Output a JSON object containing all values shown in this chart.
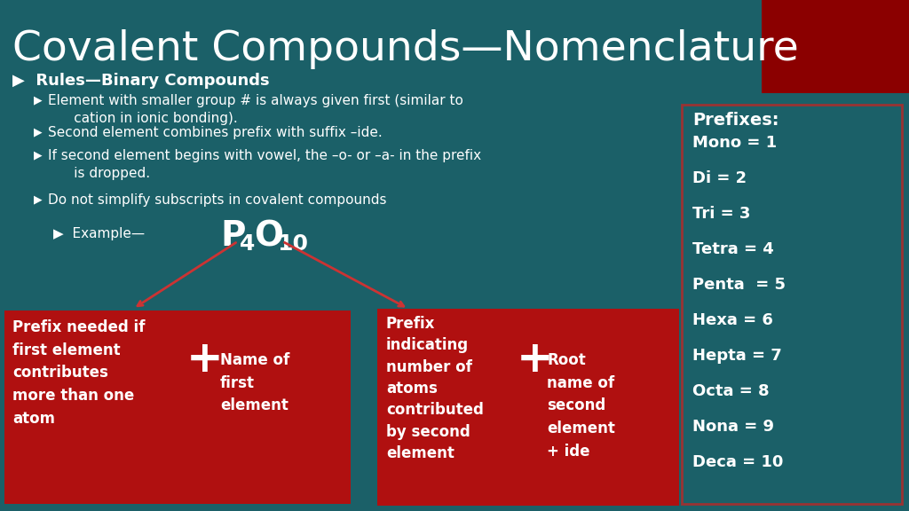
{
  "title": "Covalent Compounds—Nomenclature",
  "bg_color": "#1b6068",
  "title_color": "#ffffff",
  "title_fontsize": 34,
  "red_dark": "#8b0000",
  "red_box": "#b01010",
  "white_color": "#ffffff",
  "bullet1_header": "Rules—Binary Compounds",
  "bullets": [
    "Element with smaller group # is always given first (similar to\n      cation in ionic bonding).",
    "Second element combines prefix with suffix –ide.",
    "If second element begins with vowel, the –o- or –a- in the prefix\n      is dropped.",
    "Do not simplify subscripts in covalent compounds"
  ],
  "example_label": "Example—",
  "prefixes_title": "Prefixes:",
  "prefixes": [
    "Mono = 1",
    "Di = 2",
    "Tri = 3",
    "Tetra = 4",
    "Penta  = 5",
    "Hexa = 6",
    "Hepta = 7",
    "Octa = 8",
    "Nona = 9",
    "Deca = 10"
  ],
  "box1_text": "Prefix needed if\nfirst element\ncontributes\nmore than one\natom",
  "box1_plus_text": "Name of\nfirst\nelement",
  "box2_text": "Prefix\nindicating\nnumber of\natoms\ncontributed\nby second\nelement",
  "box2_plus_text": "Root\nname of\nsecond\nelement\n+ ide"
}
